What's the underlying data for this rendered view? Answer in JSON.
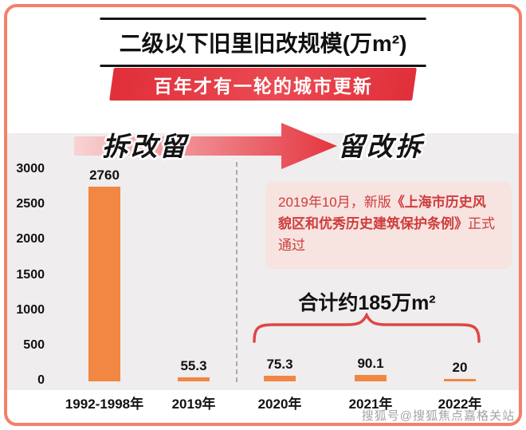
{
  "page": {
    "title": "二级以下旧里旧改规模(万m²)",
    "banner": "百年才有一轮的城市更新",
    "phase_left": "拆改留",
    "phase_right": "留改拆",
    "annotation": {
      "prefix": "2019年10月，新版",
      "book_title": "《上海市历史风貌区和优秀历史建筑保护条例》",
      "suffix": "正式通过"
    },
    "total_label": "合计约185万m²",
    "watermark": "搜狐号@搜狐焦点嘉格关站"
  },
  "chart_data": {
    "type": "bar",
    "title": "二级以下旧里旧改规模(万m²)",
    "categories": [
      "1992-1998年",
      "2019年",
      "2020年",
      "2021年",
      "2022年"
    ],
    "values": [
      2760,
      55.3,
      75.3,
      90.1,
      20
    ],
    "bar_labels": [
      "2760",
      "55.3",
      "75.3",
      "90.1",
      "20"
    ],
    "xlabel": "",
    "ylabel": "",
    "ylim": [
      0,
      3000
    ],
    "yticks": [
      0,
      500,
      1000,
      1500,
      2000,
      2500,
      3000
    ],
    "grid": false,
    "legend": false,
    "annotations": [
      "合计约185万m²",
      "2019年10月，新版《上海市历史风貌区和优秀历史建筑保护条例》正式通过",
      "拆改留 → 留改拆"
    ]
  },
  "colors": {
    "bar": "#F18743",
    "banner": "#E5343E",
    "arrow_start": "#F8D3D4",
    "arrow_end": "#E5343E",
    "annotation_bg": "#F7E3E0",
    "annotation_text": "#CE3C3C",
    "frame_border": "#F2806B",
    "chart_bg": "#EFEDEE",
    "brace": "#E04545"
  }
}
